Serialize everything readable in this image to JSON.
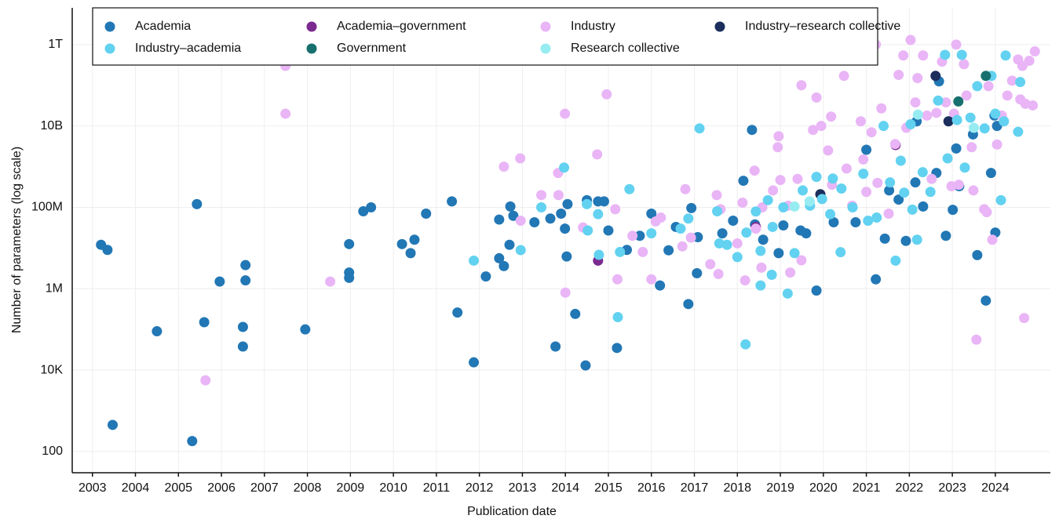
{
  "chart_data": {
    "type": "scatter",
    "x_label": "Publication date",
    "y_label": "Number of parameters (log scale)",
    "log_y": true,
    "grid": true,
    "legend": "upper left",
    "xlim": [
      2002.53,
      2025.28
    ],
    "xticks": [
      2003,
      2004,
      2005,
      2006,
      2007,
      2008,
      2009,
      2010,
      2011,
      2012,
      2013,
      2014,
      2015,
      2016,
      2017,
      2018,
      2019,
      2020,
      2021,
      2022,
      2023,
      2024
    ],
    "ylim": [
      30,
      8000000000000.0
    ],
    "yticks": [
      100,
      {
        "value": 10000,
        "label": "10K"
      },
      {
        "value": 1000000,
        "label": "1M"
      },
      {
        "value": 100000000,
        "label": "100M"
      },
      {
        "value": 10000000000,
        "label": "10B"
      },
      {
        "value": 1000000000000,
        "label": "1T"
      }
    ],
    "series": [
      {
        "name": "Academia",
        "color": "#2277b5",
        "x": [
          2003.2,
          2003.35,
          2003.47,
          2004.5,
          2005.32,
          2005.43,
          2005.6,
          2005.96,
          2006.5,
          2006.5,
          2006.56,
          2006.56,
          2007.95,
          2008.97,
          2008.97,
          2008.97,
          2009.3,
          2009.48,
          2010.2,
          2010.4,
          2010.49,
          2010.76,
          2011.36,
          2011.49,
          2011.87,
          2012.15,
          2012.46,
          2012.46,
          2012.57,
          2012.7,
          2012.72,
          2012.79,
          2013.28,
          2013.65,
          2013.77,
          2013.9,
          2013.99,
          2014.03,
          2014.05,
          2014.23,
          2014.47,
          2014.5,
          2014.76,
          2014.9,
          2015.0,
          2015.2,
          2015.43,
          2015.73,
          2016.0,
          2016.2,
          2016.4,
          2016.57,
          2016.86,
          2016.93,
          2017.06,
          2017.08,
          2017.65,
          2017.9,
          2018.14,
          2018.34,
          2018.41,
          2018.6,
          2018.96,
          2019.07,
          2019.47,
          2019.6,
          2019.84,
          2020.24,
          2020.75,
          2021.0,
          2021.22,
          2021.43,
          2021.53,
          2021.75,
          2021.92,
          2022.14,
          2022.17,
          2022.32,
          2022.63,
          2022.69,
          2022.85,
          2023.01,
          2023.09,
          2023.16,
          2023.48,
          2023.58,
          2023.78,
          2023.9,
          2023.98,
          2024.0,
          2024.04
        ],
        "values": [
          12000000,
          9000000,
          450,
          90000,
          180,
          120000000,
          150000,
          1500000,
          38000,
          115000,
          3800000,
          1600000,
          100000,
          12500000,
          2500000,
          1850000,
          80000000,
          100000000,
          12500000,
          7500000,
          16000000,
          70000000,
          140000000,
          260000,
          15500,
          2000000,
          50000000,
          5600000,
          3600000,
          12000000,
          105000000,
          62000000,
          43000000,
          53000000,
          38000,
          70000000,
          30000000,
          6200000,
          120000000,
          240000,
          13000,
          150000000,
          140000000,
          140000000,
          27000000,
          35000,
          9000000,
          20000000,
          70000000,
          1200000,
          8800000,
          33000000,
          420000,
          96000000,
          2400000,
          18500000,
          23000000,
          47000000,
          450000000,
          8000000000,
          38000000,
          16000000,
          7500000,
          36000000,
          27000000,
          23000000,
          900000,
          43000000,
          43000000,
          2600000000,
          1700000,
          17000000,
          260000000,
          155000000,
          15000000,
          410000000,
          13000000000,
          105000000,
          700000000,
          125000000000,
          20000000,
          87000000,
          2800000000,
          330000000,
          6200000000,
          6700000,
          510000,
          700000000,
          18000000000,
          24000000,
          10000000000
        ]
      },
      {
        "name": "Academia–government",
        "color": "#7b2a8f",
        "x": [
          2014.76,
          2018.43,
          2021.68
        ],
        "values": [
          4900000,
          33000000,
          3400000000
        ]
      },
      {
        "name": "Industry",
        "color": "#e9b5f6",
        "x": [
          2007.49,
          2007.49,
          2005.63,
          2008.53,
          2012.57,
          2012.95,
          2012.96,
          2013.44,
          2013.83,
          2013.84,
          2013.99,
          2014.0,
          2014.41,
          2014.74,
          2014.96,
          2015.16,
          2015.21,
          2015.56,
          2015.8,
          2016.0,
          2016.1,
          2016.22,
          2016.72,
          2016.79,
          2016.92,
          2017.37,
          2017.52,
          2017.61,
          2017.56,
          2018.0,
          2018.12,
          2018.18,
          2018.4,
          2018.43,
          2018.58,
          2018.56,
          2018.83,
          2018.94,
          2018.96,
          2019.0,
          2019.18,
          2019.23,
          2019.4,
          2019.49,
          2019.49,
          2019.76,
          2019.84,
          2019.95,
          2020.11,
          2020.18,
          2020.2,
          2020.48,
          2020.54,
          2020.67,
          2020.87,
          2020.93,
          2021.0,
          2021.12,
          2021.22,
          2021.26,
          2021.35,
          2021.52,
          2021.67,
          2021.75,
          2021.86,
          2021.93,
          2022.03,
          2022.14,
          2022.19,
          2022.32,
          2022.41,
          2022.52,
          2022.63,
          2022.76,
          2022.85,
          2022.98,
          2023.04,
          2023.09,
          2023.15,
          2023.27,
          2023.33,
          2023.45,
          2023.49,
          2023.56,
          2023.74,
          2023.8,
          2023.84,
          2023.93,
          2024.04,
          2024.15,
          2024.28,
          2024.39,
          2024.53,
          2024.58,
          2024.67,
          2024.63,
          2024.7,
          2024.79,
          2024.87,
          2024.92
        ],
        "values": [
          300000000000,
          20000000000,
          5600,
          1500000,
          1000000000,
          1600000000,
          47000000,
          200000000,
          700000000,
          200000000,
          20000000000,
          800000,
          32000000,
          2000000000,
          60000000000,
          90000000,
          1700000,
          20000000,
          8000000,
          1700000,
          45000000,
          56000000,
          11000000,
          280000000,
          18000000,
          4000000,
          200000000,
          90000000,
          2300000,
          13000000,
          130000000,
          1600000,
          800000000,
          30000000,
          100000000,
          3300000,
          260000000,
          3000000000,
          5600000000,
          470000000,
          110000000,
          2500000,
          500000000,
          100000000000,
          5000000,
          8000000000,
          50000000000,
          10000000000,
          2500000000,
          17000000000,
          360000000,
          170000000000,
          900000000,
          110000000,
          13000000000,
          1500000000,
          240000000,
          7000000000,
          1000000000000,
          400000000,
          27000000000,
          70000000,
          3600000000,
          180000000000,
          540000000000,
          9000000000,
          1300000000000,
          38000000000,
          150000000000,
          540000000000,
          18000000000,
          500000000,
          21000000000,
          380000000000,
          38000000000,
          330000000,
          20000000000,
          1000000000000,
          360000000,
          330000000000,
          56000000000,
          3000000000,
          260000000,
          56000,
          90000000,
          76000000,
          95000000000,
          16000000,
          3500000000,
          18000000000,
          56000000000,
          130000000000,
          430000000000,
          45000000000,
          190000,
          300000000000,
          35000000000,
          400000000000,
          32000000000,
          680000000000
        ]
      },
      {
        "name": "Industry–research collective",
        "color": "#1b2e5c",
        "x": [
          2019.93,
          2022.61,
          2022.91
        ],
        "values": [
          210000000,
          170000000000,
          13000000000
        ]
      },
      {
        "name": "Industry–academia",
        "color": "#62d2f0",
        "x": [
          2011.87,
          2012.96,
          2013.44,
          2013.97,
          2014.52,
          2014.5,
          2014.76,
          2014.78,
          2015.22,
          2015.27,
          2015.49,
          2016.0,
          2016.68,
          2016.86,
          2017.12,
          2017.53,
          2017.58,
          2017.76,
          2018.0,
          2018.19,
          2018.21,
          2018.43,
          2018.54,
          2018.54,
          2018.71,
          2018.8,
          2018.82,
          2019.07,
          2019.17,
          2019.33,
          2019.52,
          2019.69,
          2019.84,
          2019.97,
          2020.16,
          2020.22,
          2020.4,
          2020.42,
          2020.68,
          2020.93,
          2021.04,
          2021.24,
          2021.4,
          2021.55,
          2021.68,
          2021.8,
          2021.88,
          2022.03,
          2022.07,
          2022.18,
          2022.31,
          2022.49,
          2022.67,
          2022.83,
          2022.89,
          2023.11,
          2023.22,
          2023.29,
          2023.42,
          2023.58,
          2023.75,
          2023.91,
          2024.0,
          2024.13,
          2024.2,
          2024.24,
          2024.53,
          2024.58
        ],
        "values": [
          4900000,
          8900000,
          100000000,
          950000000,
          27000000,
          120000000,
          68000000,
          6800000,
          200000,
          8000000,
          280000000,
          23000000,
          30000000,
          53000000,
          8700000000,
          80000000,
          13000000,
          12000000,
          6000000,
          43000,
          24000000,
          79000000,
          8500000,
          1200000,
          150000000,
          2200000,
          33000000,
          100000000,
          760000,
          7500000,
          260000000,
          110000000,
          560000000,
          160000000,
          68000000,
          510000000,
          7900000,
          290000000,
          100000000,
          670000000,
          47000000,
          56000000,
          10000000000,
          410000000,
          4900000,
          1400000000,
          230000000,
          11000000000,
          88000000,
          16000000,
          730000000,
          240000000,
          42000000000,
          560000000000,
          1600000000,
          14000000000,
          560000000000,
          950000000,
          16000000000,
          95000000000,
          8700000000,
          170000000000,
          20000000000,
          150000000,
          13000000000,
          540000000000,
          7200000000,
          120000000000
        ]
      },
      {
        "name": "Government",
        "color": "#17706e",
        "x": [
          2023.14,
          2023.78
        ],
        "values": [
          40000000000,
          170000000000
        ]
      },
      {
        "name": "Research collective",
        "color": "#97ecf1",
        "x": [
          2022.2,
          2019.33,
          2019.68,
          2023.5
        ],
        "values": [
          19000000000,
          105000000,
          140000000,
          9000000000
        ]
      }
    ]
  }
}
